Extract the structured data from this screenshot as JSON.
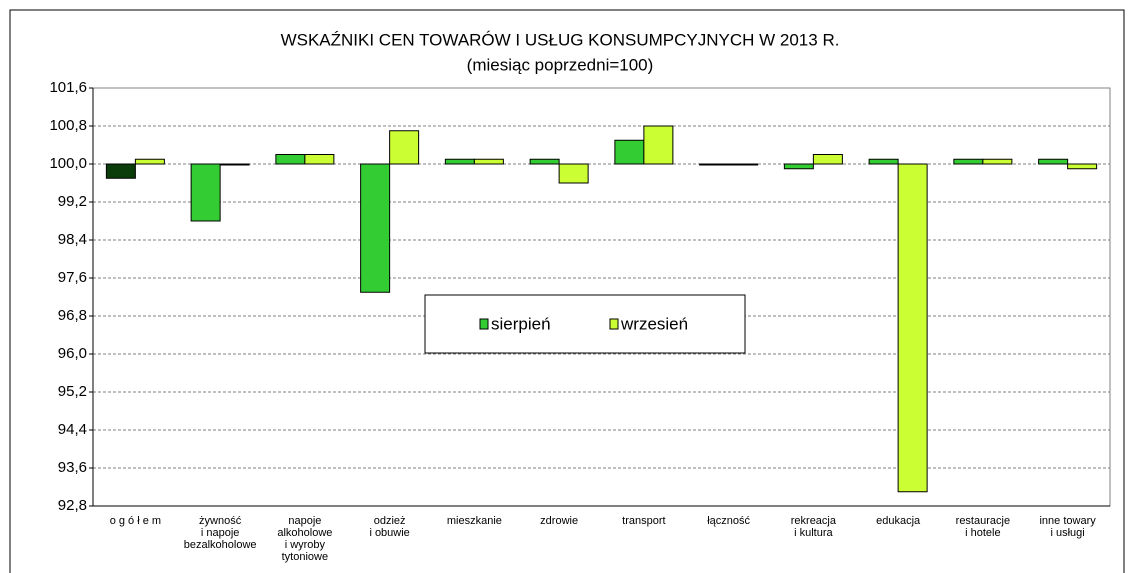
{
  "chart_data": {
    "type": "bar",
    "title": "WSKAŹNIKI CEN TOWARÓW I USŁUG KONSUMPCYJNYCH W 2013 R.",
    "subtitle": "(miesiąc poprzedni=100)",
    "categories": [
      "o g ó ł e m",
      "żywność\ni napoje\nbezalkoholowe",
      "napoje\nalkoholowe\ni wyroby\ntytoniowe",
      "odzież\ni obuwie",
      "mieszkanie",
      "zdrowie",
      "transport",
      "łączność",
      "rekreacja\ni kultura",
      "edukacja",
      "restauracje\ni hotele",
      "inne towary\ni usługi"
    ],
    "series": [
      {
        "name": "sierpień",
        "color": "#33cc33",
        "colors": [
          "#0a3d0a",
          "#33cc33",
          "#33cc33",
          "#33cc33",
          "#33cc33",
          "#33cc33",
          "#33cc33",
          "#33cc33",
          "#33cc33",
          "#33cc33",
          "#33cc33",
          "#33cc33"
        ],
        "values": [
          99.7,
          98.8,
          100.2,
          97.3,
          100.1,
          100.1,
          100.5,
          100.0,
          99.9,
          100.1,
          100.1,
          100.1
        ]
      },
      {
        "name": "wrzesień",
        "color": "#ccff33",
        "values": [
          100.1,
          100.0,
          100.2,
          100.7,
          100.1,
          99.6,
          100.8,
          100.0,
          100.2,
          93.1,
          100.1,
          99.9
        ]
      }
    ],
    "bar_base": 100,
    "ylim": [
      92.8,
      101.6
    ],
    "yticks": [
      {
        "value": 92.8,
        "label": "92,8"
      },
      {
        "value": 93.6,
        "label": "93,6"
      },
      {
        "value": 94.4,
        "label": "94,4"
      },
      {
        "value": 95.2,
        "label": "95,2"
      },
      {
        "value": 96.0,
        "label": "96,0"
      },
      {
        "value": 96.8,
        "label": "96,8"
      },
      {
        "value": 97.6,
        "label": "97,6"
      },
      {
        "value": 98.4,
        "label": "98,4"
      },
      {
        "value": 99.2,
        "label": "99,2"
      },
      {
        "value": 100.0,
        "label": "100,0"
      },
      {
        "value": 100.8,
        "label": "100,8"
      },
      {
        "value": 101.6,
        "label": "101,6"
      }
    ],
    "grid": true
  }
}
